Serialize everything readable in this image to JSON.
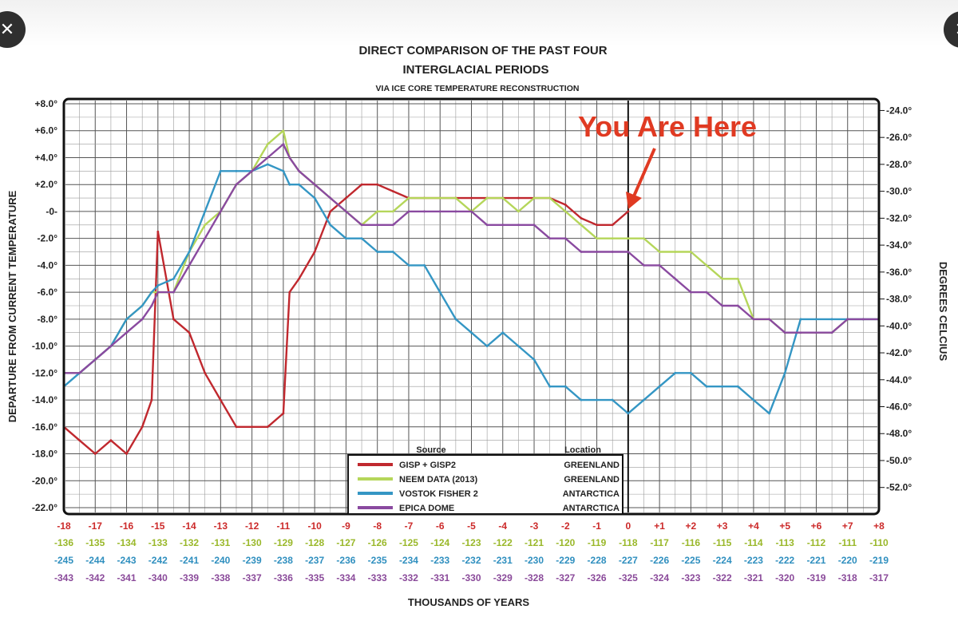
{
  "viewer": {
    "close_icon": "close-icon",
    "next_icon": "close-icon"
  },
  "chart_data": {
    "type": "line",
    "title_line1": "DIRECT COMPARISON OF THE PAST FOUR",
    "title_line2": "INTERGLACIAL PERIODS",
    "subtitle": "VIA ICE CORE TEMPERATURE RECONSTRUCTION",
    "xlabel": "THOUSANDS OF YEARS",
    "ylabel_left": "DEPARTURE FROM CURRENT TEMPERATURE",
    "ylabel_right": "DEGREES CELCIUS",
    "xlim": [
      -18,
      8
    ],
    "ylim": [
      -22,
      8
    ],
    "grid": true,
    "legend_location": "bottom-center",
    "annotation": {
      "text": "You Are Here",
      "x": 0,
      "y": 0,
      "color": "#e03a22"
    },
    "y_ticks_left": [
      "+8.0°",
      "+6.0°",
      "+4.0°",
      "+2.0°",
      "-0-",
      "-2.0°",
      "-4.0°",
      "-6.0°",
      "-8.0°",
      "-10.0°",
      "-12.0°",
      "-14.0°",
      "-16.0°",
      "-18.0°",
      "-20.0°",
      "-22.0°"
    ],
    "y_tick_values_left": [
      8,
      6,
      4,
      2,
      0,
      -2,
      -4,
      -6,
      -8,
      -10,
      -12,
      -14,
      -16,
      -18,
      -20,
      -22
    ],
    "y_ticks_right": [
      "-24.0°",
      "-26.0°",
      "-28.0°",
      "-30.0°",
      "-32.0°",
      "-34.0°",
      "-36.0°",
      "-38.0°",
      "-40.0°",
      "-42.0°",
      "-44.0°",
      "-46.0°",
      "-48.0°",
      "-50.0°",
      "-52.0°"
    ],
    "y_tick_values_right": [
      -24,
      -26,
      -28,
      -30,
      -32,
      -34,
      -36,
      -38,
      -40,
      -42,
      -44,
      -46,
      -48,
      -50,
      -52
    ],
    "right_axis_offset": -31.5,
    "x_tick_rows": [
      {
        "color": "#cc2a2a",
        "labels": [
          "-18",
          "-17",
          "-16",
          "-15",
          "-14",
          "-13",
          "-12",
          "-11",
          "-10",
          "-9",
          "-8",
          "-7",
          "-6",
          "-5",
          "-4",
          "-3",
          "-2",
          "-1",
          "0",
          "+1",
          "+2",
          "+3",
          "+4",
          "+5",
          "+6",
          "+7",
          "+8"
        ]
      },
      {
        "color": "#9ab82a",
        "labels": [
          "-136",
          "-135",
          "-134",
          "-133",
          "-132",
          "-131",
          "-130",
          "-129",
          "-128",
          "-127",
          "-126",
          "-125",
          "-124",
          "-123",
          "-122",
          "-121",
          "-120",
          "-119",
          "-118",
          "-117",
          "-116",
          "-115",
          "-114",
          "-113",
          "-112",
          "-111",
          "-110"
        ]
      },
      {
        "color": "#2f8fbf",
        "labels": [
          "-245",
          "-244",
          "-243",
          "-242",
          "-241",
          "-240",
          "-239",
          "-238",
          "-237",
          "-236",
          "-235",
          "-234",
          "-233",
          "-232",
          "-231",
          "-230",
          "-229",
          "-228",
          "-227",
          "-226",
          "-225",
          "-224",
          "-223",
          "-222",
          "-221",
          "-220",
          "-219"
        ]
      },
      {
        "color": "#8a4a9a",
        "labels": [
          "-343",
          "-342",
          "-341",
          "-340",
          "-339",
          "-338",
          "-337",
          "-336",
          "-335",
          "-334",
          "-333",
          "-332",
          "-331",
          "-330",
          "-329",
          "-328",
          "-327",
          "-326",
          "-325",
          "-324",
          "-323",
          "-322",
          "-321",
          "-320",
          "-319",
          "-318",
          "-317"
        ]
      }
    ],
    "x": [
      -18,
      -17.5,
      -17,
      -16.5,
      -16,
      -15.5,
      -15.2,
      -15,
      -14.5,
      -14,
      -13.5,
      -13,
      -12.5,
      -12,
      -11.5,
      -11,
      -10.8,
      -10.5,
      -10,
      -9.5,
      -9,
      -8.5,
      -8,
      -7.5,
      -7,
      -6.5,
      -6,
      -5.5,
      -5,
      -4.5,
      -4,
      -3.5,
      -3,
      -2.5,
      -2,
      -1.5,
      -1,
      -0.5,
      0,
      0.5,
      1,
      1.5,
      2,
      2.5,
      3,
      3.5,
      4,
      4.5,
      5,
      5.5,
      6,
      6.5,
      7,
      7.5,
      8
    ],
    "legend": {
      "header_source": "Source",
      "header_location": "Location",
      "rows": [
        {
          "label": "GISP + GISP2",
          "location": "GREENLAND",
          "color": "#c0282e"
        },
        {
          "label": "NEEM DATA (2013)",
          "location": "GREENLAND",
          "color": "#b5d65a"
        },
        {
          "label": "VOSTOK FISHER 2",
          "location": "ANTARCTICA",
          "color": "#3496c4"
        },
        {
          "label": "EPICA DOME",
          "location": "ANTARCTICA",
          "color": "#8a4aa0"
        }
      ]
    },
    "series": [
      {
        "name": "GISP + GISP2",
        "color": "#c0282e",
        "values": [
          -16,
          -17,
          -18,
          -17,
          -18,
          -16,
          -14,
          -1.5,
          -8,
          -9,
          -12,
          -14,
          -16,
          -16,
          -16,
          -15,
          -6,
          -5,
          -3,
          0,
          1,
          2,
          2,
          1.5,
          1,
          1,
          1,
          1,
          1,
          1,
          1,
          1,
          1,
          1,
          0.5,
          -0.5,
          -1,
          -1,
          0,
          null,
          null,
          null,
          null,
          null,
          null,
          null,
          null,
          null,
          null,
          null,
          null,
          null,
          null,
          null,
          null
        ]
      },
      {
        "name": "NEEM DATA (2013)",
        "color": "#b5d65a",
        "values": [
          -12,
          -12,
          -11,
          -10,
          -8,
          -7,
          -6,
          -6,
          -6,
          -3,
          -1,
          0,
          2,
          3,
          5,
          6,
          4,
          3,
          2,
          1,
          0,
          -1,
          0,
          0,
          1,
          1,
          1,
          1,
          0,
          1,
          1,
          0,
          1,
          1,
          0,
          -1,
          -2,
          -2,
          -2,
          -2,
          -3,
          -3,
          -3,
          -4,
          -5,
          -5,
          -8,
          -8,
          -9,
          -9,
          -9,
          -9,
          -8,
          -8,
          -8
        ]
      },
      {
        "name": "VOSTOK FISHER 2",
        "color": "#3496c4",
        "values": [
          -13,
          -12,
          -11,
          -10,
          -8,
          -7,
          -6,
          -5.5,
          -5,
          -3,
          0,
          3,
          3,
          3,
          3.5,
          3,
          2,
          2,
          1,
          -1,
          -2,
          -2,
          -3,
          -3,
          -4,
          -4,
          -6,
          -8,
          -9,
          -10,
          -9,
          -10,
          -11,
          -13,
          -13,
          -14,
          -14,
          -14,
          -15,
          -14,
          -13,
          -12,
          -12,
          -13,
          -13,
          -13,
          -14,
          -15,
          -12,
          -8,
          -8,
          -8,
          -8,
          -8,
          -8
        ]
      },
      {
        "name": "EPICA DOME",
        "color": "#8a4aa0",
        "values": [
          -12,
          -12,
          -11,
          -10,
          -9,
          -8,
          -7,
          -6,
          -6,
          -4,
          -2,
          0,
          2,
          3,
          4,
          5,
          4,
          3,
          2,
          1,
          0,
          -1,
          -1,
          -1,
          0,
          0,
          0,
          0,
          0,
          -1,
          -1,
          -1,
          -1,
          -2,
          -2,
          -3,
          -3,
          -3,
          -3,
          -4,
          -4,
          -5,
          -6,
          -6,
          -7,
          -7,
          -8,
          -8,
          -9,
          -9,
          -9,
          -9,
          -8,
          -8,
          -8
        ]
      }
    ]
  }
}
